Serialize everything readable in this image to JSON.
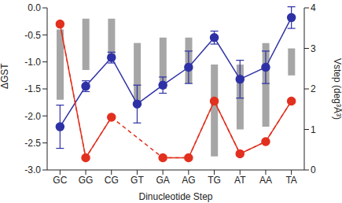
{
  "chart_data": {
    "type": "line",
    "xlabel": "Dinucleotide Step",
    "ylabel": "ΔGST",
    "y2label": "Vstep (deg³Å³)",
    "categories": [
      "GC",
      "GG",
      "CG",
      "GT",
      "GA",
      "AG",
      "TG",
      "AT",
      "AA",
      "TA"
    ],
    "ylim": [
      -3,
      0
    ],
    "yticks": [
      {
        "value": -3,
        "label": "-3.0"
      },
      {
        "value": -2.5,
        "label": "-2.5"
      },
      {
        "value": -2,
        "label": "-2.0"
      },
      {
        "value": -1.5,
        "label": "-1.5"
      },
      {
        "value": -1,
        "label": "-1.0"
      },
      {
        "value": -0.5,
        "label": "-0.5"
      },
      {
        "value": 0,
        "label": "0.0"
      }
    ],
    "y2lim": [
      0,
      4
    ],
    "y2ticks": [
      0,
      1,
      2,
      3,
      4
    ],
    "series": [
      {
        "type": "bar",
        "color": "#a6a6a6",
        "values": [
          [
            -1.7,
            -0.4
          ],
          [
            -1.15,
            -0.2
          ],
          [
            -0.95,
            -0.2
          ],
          [
            -1.75,
            -0.65
          ],
          [
            -1.5,
            -0.55
          ],
          [
            -1.4,
            -0.55
          ],
          [
            -2.75,
            -1.05
          ],
          [
            -2.25,
            -1.05
          ],
          [
            -2.2,
            -0.65
          ],
          [
            -1.25,
            -0.75
          ]
        ]
      },
      {
        "type": "line",
        "color": "#2e31a6",
        "marker": "circle",
        "values": [
          -2.2,
          -1.45,
          -0.92,
          -1.78,
          -1.43,
          -1.1,
          -0.55,
          -1.32,
          -1.1,
          -0.18
        ],
        "error": [
          0.4,
          0.1,
          0.1,
          0.35,
          0.15,
          0.3,
          0.12,
          0.35,
          0.3,
          0.2
        ]
      },
      {
        "type": "line",
        "color": "#e2301f",
        "marker": "circle",
        "axis": "y2",
        "values": [
          3.6,
          0.3,
          1.3,
          null,
          0.3,
          0.3,
          1.7,
          0.4,
          0.7,
          1.7
        ]
      }
    ]
  }
}
